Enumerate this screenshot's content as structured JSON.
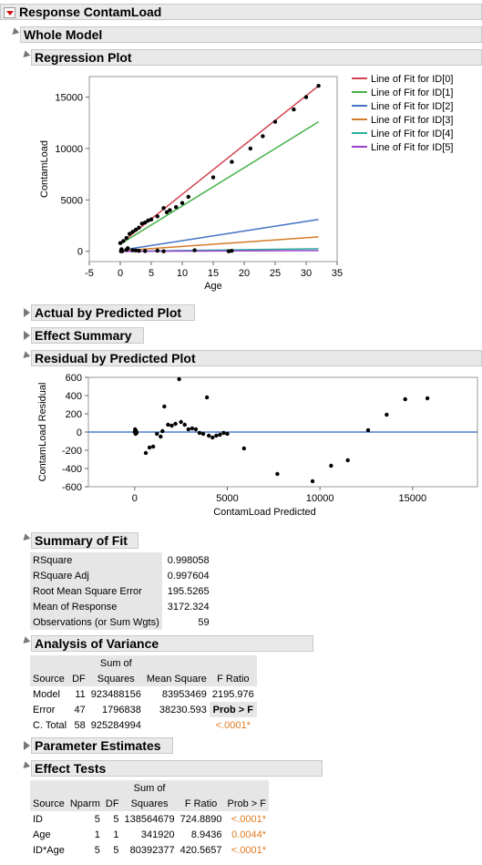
{
  "response_title": "Response ContamLoad",
  "whole_model": "Whole Model",
  "regression_plot": {
    "title": "Regression Plot",
    "chart_data": {
      "type": "line",
      "xlabel": "Age",
      "ylabel": "ContamLoad",
      "xlim": [
        -5,
        35
      ],
      "ylim": [
        -1000,
        17000
      ],
      "xticks": [
        "-5",
        "0",
        "5",
        "10",
        "15",
        "20",
        "25",
        "30",
        "35"
      ],
      "yticks": [
        "0",
        "5000",
        "10000",
        "15000"
      ],
      "legend_placement": "right",
      "series": [
        {
          "name": "Line of Fit for ID[0]",
          "color": "#d0434f",
          "line": [
            [
              0,
              750
            ],
            [
              32,
              16100
            ]
          ]
        },
        {
          "name": "Line of Fit for ID[1]",
          "color": "#44b046",
          "line": [
            [
              0,
              700
            ],
            [
              32,
              12600
            ]
          ]
        },
        {
          "name": "Line of Fit for ID[2]",
          "color": "#4472c4",
          "line": [
            [
              0,
              100
            ],
            [
              32,
              3100
            ]
          ]
        },
        {
          "name": "Line of Fit for ID[3]",
          "color": "#d47b27",
          "line": [
            [
              0,
              50
            ],
            [
              32,
              1400
            ]
          ]
        },
        {
          "name": "Line of Fit for ID[4]",
          "color": "#2ab09a",
          "line": [
            [
              0,
              0
            ],
            [
              32,
              250
            ]
          ]
        },
        {
          "name": "Line of Fit for ID[5]",
          "color": "#9b3fd0",
          "line": [
            [
              0,
              0
            ],
            [
              32,
              80
            ]
          ]
        }
      ],
      "points": [
        [
          0,
          800
        ],
        [
          0.5,
          1000
        ],
        [
          1,
          1300
        ],
        [
          1.5,
          1700
        ],
        [
          2,
          1900
        ],
        [
          2.5,
          2100
        ],
        [
          3,
          2300
        ],
        [
          3.5,
          2700
        ],
        [
          4,
          2800
        ],
        [
          4.5,
          3000
        ],
        [
          5,
          3100
        ],
        [
          6,
          3400
        ],
        [
          7,
          4200
        ],
        [
          7.5,
          3800
        ],
        [
          8,
          4000
        ],
        [
          9,
          4300
        ],
        [
          10,
          4700
        ],
        [
          11,
          5300
        ],
        [
          15,
          7200
        ],
        [
          18,
          8700
        ],
        [
          21,
          10000
        ],
        [
          23,
          11200
        ],
        [
          25,
          12600
        ],
        [
          28,
          13800
        ],
        [
          30,
          15000
        ],
        [
          32,
          16100
        ],
        [
          1,
          150
        ],
        [
          2,
          100
        ],
        [
          3,
          50
        ],
        [
          4,
          30
        ],
        [
          0.3,
          0
        ],
        [
          7,
          0
        ],
        [
          12,
          100
        ],
        [
          18,
          50
        ],
        [
          17.5,
          0
        ],
        [
          0.2,
          200
        ],
        [
          0.1,
          20
        ],
        [
          1.2,
          300
        ],
        [
          2.5,
          80
        ],
        [
          6,
          60
        ]
      ]
    }
  },
  "actual_by_predicted": "Actual by Predicted Plot",
  "effect_summary": "Effect Summary",
  "residual_plot": {
    "title": "Residual by Predicted Plot",
    "chart_data": {
      "type": "scatter",
      "xlabel": "ContamLoad Predicted",
      "ylabel": "ContamLoad Residual",
      "xlim": [
        -2500,
        18500
      ],
      "ylim": [
        -600,
        600
      ],
      "xticks": [
        "0",
        "5000",
        "10000",
        "15000"
      ],
      "yticks": [
        "600",
        "400",
        "200",
        "0",
        "-200",
        "-400",
        "-600"
      ],
      "reference_line": 0,
      "points": [
        [
          0,
          0
        ],
        [
          20,
          30
        ],
        [
          50,
          -20
        ],
        [
          80,
          10
        ],
        [
          100,
          -10
        ],
        [
          600,
          -230
        ],
        [
          800,
          -170
        ],
        [
          1000,
          -160
        ],
        [
          1200,
          -20
        ],
        [
          1400,
          -50
        ],
        [
          1500,
          10
        ],
        [
          1600,
          280
        ],
        [
          1800,
          80
        ],
        [
          2000,
          70
        ],
        [
          2200,
          90
        ],
        [
          2400,
          580
        ],
        [
          2500,
          110
        ],
        [
          2700,
          80
        ],
        [
          2900,
          30
        ],
        [
          3100,
          40
        ],
        [
          3300,
          30
        ],
        [
          3500,
          -10
        ],
        [
          3700,
          -20
        ],
        [
          3900,
          380
        ],
        [
          4000,
          -40
        ],
        [
          4200,
          -60
        ],
        [
          4400,
          -40
        ],
        [
          4600,
          -30
        ],
        [
          4800,
          -10
        ],
        [
          5000,
          -20
        ],
        [
          5900,
          -180
        ],
        [
          7700,
          -460
        ],
        [
          9600,
          -540
        ],
        [
          10600,
          -370
        ],
        [
          11500,
          -310
        ],
        [
          12600,
          20
        ],
        [
          13600,
          190
        ],
        [
          14600,
          360
        ],
        [
          15800,
          370
        ]
      ]
    }
  },
  "summary_of_fit": {
    "title": "Summary of Fit",
    "rows": [
      {
        "label": "RSquare",
        "value": "0.998058"
      },
      {
        "label": "RSquare Adj",
        "value": "0.997604"
      },
      {
        "label": "Root Mean Square Error",
        "value": "195.5265"
      },
      {
        "label": "Mean of Response",
        "value": "3172.324"
      },
      {
        "label": "Observations (or Sum Wgts)",
        "value": "59"
      }
    ]
  },
  "anova": {
    "title": "Analysis of Variance",
    "headers": {
      "source": "Source",
      "df": "DF",
      "ss_top": "Sum of",
      "ss_bottom": "Squares",
      "ms": "Mean Square",
      "f": "F Ratio",
      "prob": "Prob > F"
    },
    "rows": [
      {
        "source": "Model",
        "df": "11",
        "ss": "923488156",
        "ms": "83953469",
        "f": "2195.976"
      },
      {
        "source": "Error",
        "df": "47",
        "ss": "1796838",
        "ms": "38230.593",
        "f": ""
      },
      {
        "source": "C. Total",
        "df": "58",
        "ss": "925284994",
        "ms": "",
        "f": ""
      }
    ],
    "prob_value": "<.0001*"
  },
  "parameter_estimates": "Parameter Estimates",
  "effect_tests": {
    "title": "Effect Tests",
    "headers": {
      "source": "Source",
      "nparm": "Nparm",
      "df": "DF",
      "ss_top": "Sum of",
      "ss_bottom": "Squares",
      "f": "F Ratio",
      "prob": "Prob > F"
    },
    "rows": [
      {
        "source": "ID",
        "nparm": "5",
        "df": "5",
        "ss": "138564679",
        "f": "724.8890",
        "prob": "<.0001*"
      },
      {
        "source": "Age",
        "nparm": "1",
        "df": "1",
        "ss": "341920",
        "f": "8.9436",
        "prob": "0.0044*"
      },
      {
        "source": "ID*Age",
        "nparm": "5",
        "df": "5",
        "ss": "80392377",
        "f": "420.5657",
        "prob": "<.0001*"
      }
    ]
  },
  "colors": {
    "accent_red": "#d01010",
    "p_value_orange": "#e07b22",
    "ref_line_blue": "#4f7ec9"
  }
}
